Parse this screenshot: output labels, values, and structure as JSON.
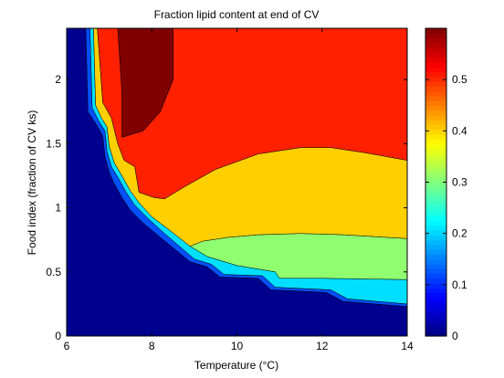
{
  "chart_data": {
    "type": "heatmap",
    "subtype": "filled-contour",
    "title": "Fraction lipid content at end of CV",
    "xlabel": "Temperature (°C)",
    "ylabel": "Food index (fraction of CV ks)",
    "xlim": [
      6,
      14
    ],
    "ylim": [
      0,
      2.4
    ],
    "xticks": [
      6,
      8,
      10,
      12,
      14
    ],
    "xtick_labels": [
      "6",
      "8",
      "10",
      "12",
      "14"
    ],
    "yticks": [
      0,
      0.5,
      1,
      1.5,
      2
    ],
    "ytick_labels": [
      "0",
      "0.5",
      "1",
      "1.5",
      "2"
    ],
    "colorbar": {
      "range": [
        0,
        0.6
      ],
      "ticks": [
        0,
        0.1,
        0.2,
        0.3,
        0.4,
        0.5
      ],
      "tick_labels": [
        "0",
        "0.1",
        "0.2",
        "0.3",
        "0.4",
        "0.5"
      ],
      "colormap": "jet"
    },
    "levels": [
      {
        "name": "0",
        "color": "#00008f",
        "polygon": [
          [
            6,
            0
          ],
          [
            14,
            0
          ],
          [
            14,
            0.23
          ],
          [
            12.5,
            0.27
          ],
          [
            12.1,
            0.34
          ],
          [
            10.8,
            0.36
          ],
          [
            10.5,
            0.45
          ],
          [
            9.6,
            0.46
          ],
          [
            9.3,
            0.54
          ],
          [
            8.9,
            0.58
          ],
          [
            8.2,
            0.77
          ],
          [
            7.8,
            0.88
          ],
          [
            7.5,
            0.98
          ],
          [
            7.3,
            1.08
          ],
          [
            7.1,
            1.2
          ],
          [
            7.0,
            1.28
          ],
          [
            6.9,
            1.4
          ],
          [
            6.85,
            1.56
          ],
          [
            6.7,
            1.65
          ],
          [
            6.5,
            1.75
          ],
          [
            6.45,
            2.4
          ],
          [
            6,
            2.4
          ]
        ]
      },
      {
        "name": "0.05",
        "color": "#0050ff",
        "polygon": [
          [
            6.5,
            1.75
          ],
          [
            6.7,
            1.65
          ],
          [
            6.85,
            1.56
          ],
          [
            6.9,
            1.4
          ],
          [
            7.0,
            1.28
          ],
          [
            7.1,
            1.2
          ],
          [
            7.3,
            1.08
          ],
          [
            7.5,
            0.98
          ],
          [
            7.8,
            0.88
          ],
          [
            8.2,
            0.77
          ],
          [
            8.9,
            0.58
          ],
          [
            9.3,
            0.54
          ],
          [
            9.6,
            0.46
          ],
          [
            10.5,
            0.45
          ],
          [
            10.8,
            0.36
          ],
          [
            12.1,
            0.34
          ],
          [
            12.5,
            0.27
          ],
          [
            14,
            0.23
          ],
          [
            14,
            0.25
          ],
          [
            12.6,
            0.29
          ],
          [
            12.2,
            0.36
          ],
          [
            10.9,
            0.38
          ],
          [
            10.6,
            0.47
          ],
          [
            9.7,
            0.48
          ],
          [
            9.4,
            0.56
          ],
          [
            9.0,
            0.6
          ],
          [
            8.3,
            0.8
          ],
          [
            7.9,
            0.92
          ],
          [
            7.6,
            1.02
          ],
          [
            7.4,
            1.12
          ],
          [
            7.2,
            1.24
          ],
          [
            7.05,
            1.32
          ],
          [
            6.95,
            1.44
          ],
          [
            6.9,
            1.6
          ],
          [
            6.75,
            1.68
          ],
          [
            6.6,
            1.78
          ],
          [
            6.55,
            2.4
          ],
          [
            6.45,
            2.4
          ]
        ]
      },
      {
        "name": "0.1",
        "color": "#00dfff",
        "polygon": [
          [
            6.6,
            1.78
          ],
          [
            6.75,
            1.68
          ],
          [
            6.9,
            1.6
          ],
          [
            6.95,
            1.44
          ],
          [
            7.05,
            1.32
          ],
          [
            7.2,
            1.24
          ],
          [
            7.4,
            1.12
          ],
          [
            7.6,
            1.02
          ],
          [
            7.9,
            0.92
          ],
          [
            8.3,
            0.8
          ],
          [
            9.0,
            0.6
          ],
          [
            9.4,
            0.56
          ],
          [
            9.7,
            0.48
          ],
          [
            10.6,
            0.47
          ],
          [
            10.9,
            0.38
          ],
          [
            12.2,
            0.36
          ],
          [
            12.6,
            0.29
          ],
          [
            14,
            0.25
          ],
          [
            14,
            0.44
          ],
          [
            12.0,
            0.45
          ],
          [
            11.0,
            0.45
          ],
          [
            10.9,
            0.5
          ],
          [
            10.0,
            0.55
          ],
          [
            9.3,
            0.62
          ],
          [
            8.9,
            0.7
          ],
          [
            8.4,
            0.83
          ],
          [
            8.0,
            0.93
          ],
          [
            7.7,
            1.04
          ],
          [
            7.5,
            1.13
          ],
          [
            7.3,
            1.25
          ],
          [
            7.12,
            1.35
          ],
          [
            7.0,
            1.48
          ],
          [
            6.95,
            1.63
          ],
          [
            6.82,
            1.7
          ],
          [
            6.68,
            1.8
          ],
          [
            6.63,
            2.4
          ],
          [
            6.55,
            2.4
          ]
        ]
      },
      {
        "name": "0.3",
        "color": "#8fff70",
        "polygon": [
          [
            8.9,
            0.7
          ],
          [
            9.3,
            0.62
          ],
          [
            10.0,
            0.55
          ],
          [
            10.9,
            0.5
          ],
          [
            11.0,
            0.45
          ],
          [
            12.0,
            0.45
          ],
          [
            14,
            0.44
          ],
          [
            14,
            0.76
          ],
          [
            12.5,
            0.79
          ],
          [
            11.5,
            0.8
          ],
          [
            10.5,
            0.79
          ],
          [
            9.8,
            0.77
          ],
          [
            9.2,
            0.74
          ]
        ]
      },
      {
        "name": "0.35",
        "color": "#ffcf00",
        "polygon": [
          [
            6.68,
            1.8
          ],
          [
            6.82,
            1.7
          ],
          [
            6.95,
            1.63
          ],
          [
            7.0,
            1.48
          ],
          [
            7.12,
            1.35
          ],
          [
            7.3,
            1.25
          ],
          [
            7.5,
            1.13
          ],
          [
            7.7,
            1.04
          ],
          [
            8.0,
            0.93
          ],
          [
            8.4,
            0.83
          ],
          [
            8.9,
            0.7
          ],
          [
            9.2,
            0.74
          ],
          [
            9.8,
            0.77
          ],
          [
            10.5,
            0.79
          ],
          [
            11.5,
            0.8
          ],
          [
            12.5,
            0.79
          ],
          [
            14,
            0.76
          ],
          [
            14,
            1.37
          ],
          [
            13.0,
            1.43
          ],
          [
            12.2,
            1.47
          ],
          [
            11.5,
            1.47
          ],
          [
            10.5,
            1.42
          ],
          [
            9.5,
            1.3
          ],
          [
            8.8,
            1.17
          ],
          [
            8.3,
            1.07
          ],
          [
            8.05,
            1.08
          ],
          [
            7.7,
            1.12
          ],
          [
            7.6,
            1.32
          ],
          [
            7.35,
            1.37
          ],
          [
            7.2,
            1.5
          ],
          [
            7.05,
            1.7
          ],
          [
            6.85,
            1.82
          ],
          [
            6.72,
            2.4
          ],
          [
            6.63,
            2.4
          ]
        ]
      },
      {
        "name": "0.5",
        "color": "#ff2000",
        "polygon": [
          [
            6.85,
            1.82
          ],
          [
            7.05,
            1.7
          ],
          [
            7.2,
            1.5
          ],
          [
            7.35,
            1.37
          ],
          [
            7.6,
            1.32
          ],
          [
            7.7,
            1.12
          ],
          [
            8.05,
            1.08
          ],
          [
            8.3,
            1.07
          ],
          [
            8.8,
            1.17
          ],
          [
            9.5,
            1.3
          ],
          [
            10.5,
            1.42
          ],
          [
            11.5,
            1.47
          ],
          [
            12.2,
            1.47
          ],
          [
            13.0,
            1.43
          ],
          [
            14,
            1.37
          ],
          [
            14,
            2.4
          ],
          [
            8.5,
            2.4
          ],
          [
            8.5,
            2.0
          ],
          [
            8.2,
            1.75
          ],
          [
            7.8,
            1.6
          ],
          [
            7.3,
            1.55
          ],
          [
            7.3,
            1.9
          ],
          [
            7.2,
            2.4
          ],
          [
            6.72,
            2.4
          ]
        ]
      },
      {
        "name": "0.55",
        "color": "#800000",
        "polygon": [
          [
            7.2,
            2.4
          ],
          [
            7.3,
            1.9
          ],
          [
            7.3,
            1.55
          ],
          [
            7.8,
            1.6
          ],
          [
            8.2,
            1.75
          ],
          [
            8.5,
            2.0
          ],
          [
            8.5,
            2.4
          ]
        ]
      }
    ]
  }
}
